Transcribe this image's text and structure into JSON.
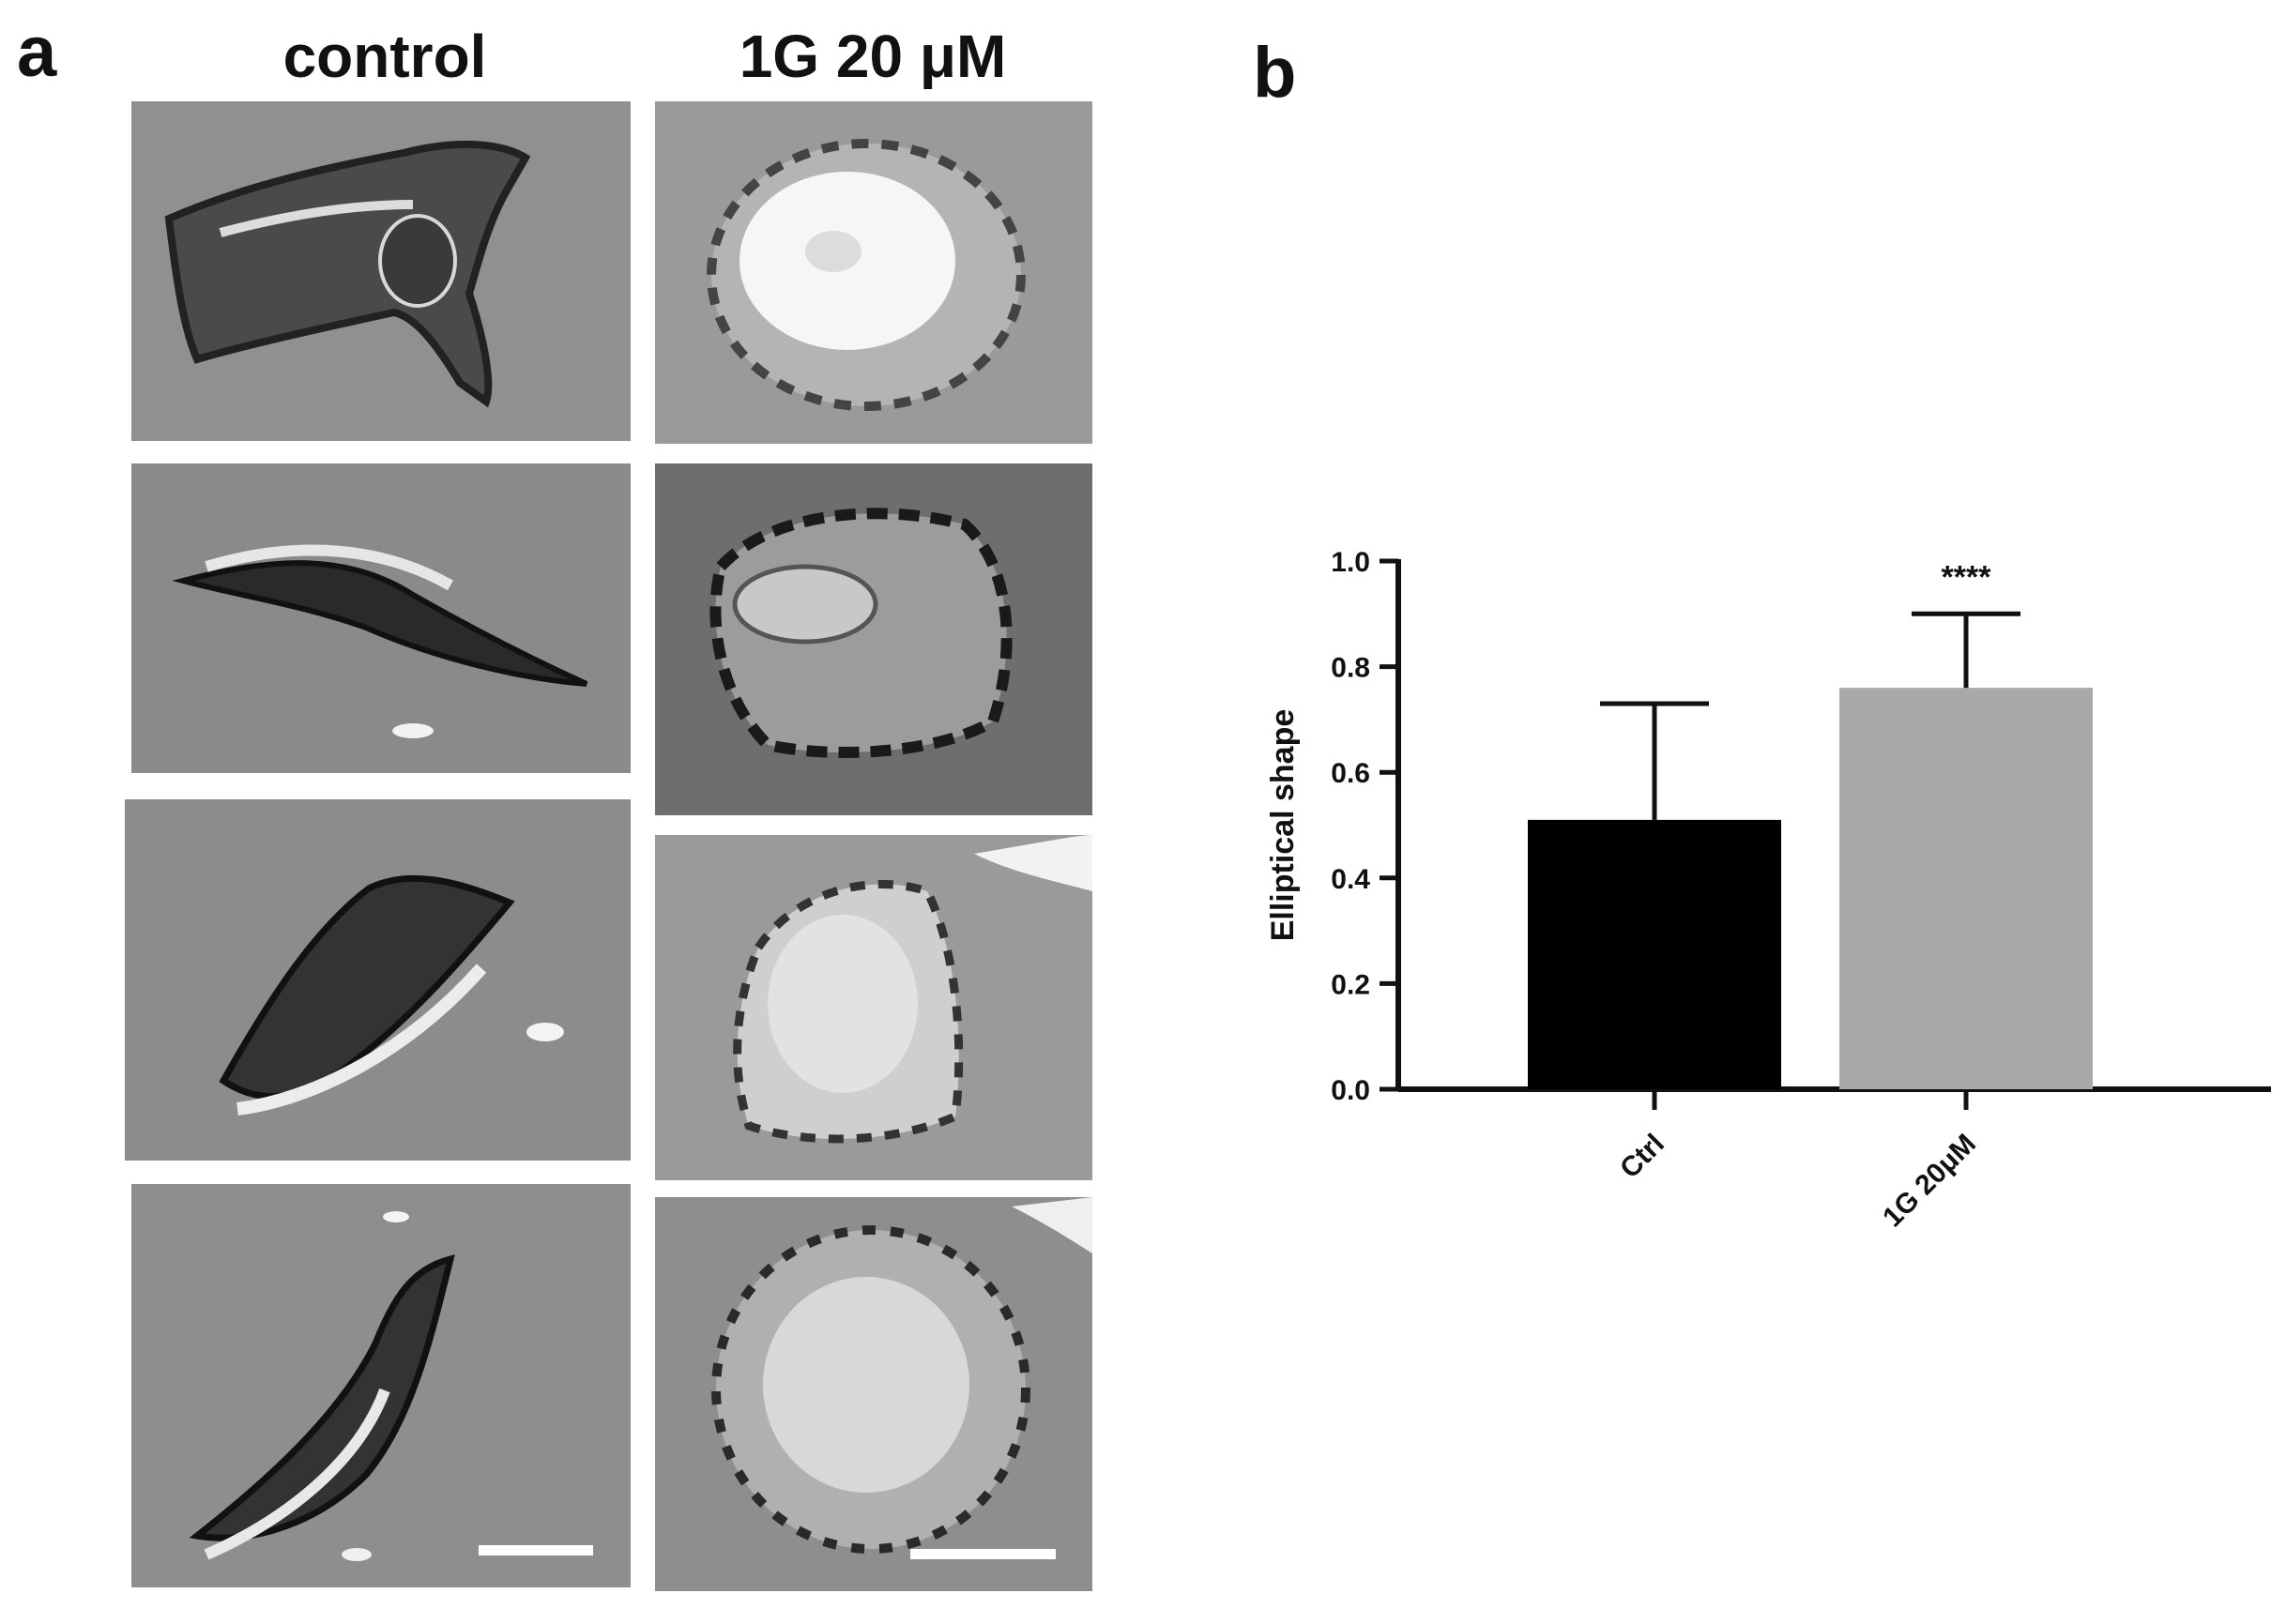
{
  "panel_a": {
    "letter": "a",
    "columns": [
      "control",
      "1G 20 μM"
    ]
  },
  "panel_b": {
    "letter": "b"
  },
  "chart_data": {
    "type": "bar",
    "categories": [
      "Ctrl",
      "1G 20μM"
    ],
    "values": [
      0.51,
      0.76
    ],
    "errors": [
      0.22,
      0.14
    ],
    "bar_colors": [
      "#000000",
      "#a9a9a9"
    ],
    "ylabel": "Elliptical shape",
    "xlabel": "",
    "ylim": [
      0.0,
      1.0
    ],
    "yticks": [
      "0.0",
      "0.2",
      "0.4",
      "0.6",
      "0.8",
      "1.0"
    ],
    "annotations": [
      {
        "category": "1G 20μM",
        "text": "****"
      }
    ],
    "grid": false
  }
}
